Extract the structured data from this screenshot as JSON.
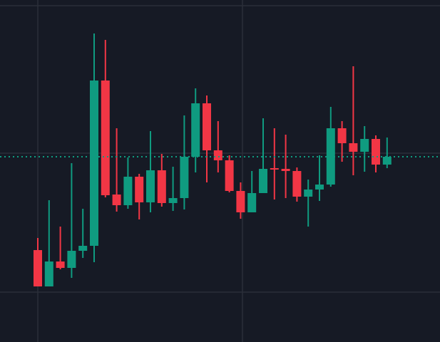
{
  "chart_data": {
    "type": "candlestick",
    "open": [
      12.9,
      7.8,
      11.3,
      10.4,
      12.8,
      13.5,
      36.7,
      20.7,
      19.2,
      23.2,
      19.6,
      24.1,
      19.5,
      20.2,
      26.0,
      33.5,
      26.9,
      25.5,
      21.2,
      18.2,
      20.9,
      24.4,
      24.3,
      24.0,
      20.4,
      21.4,
      22.1,
      30.0,
      27.9,
      26.7,
      28.5,
      24.9
    ],
    "high": [
      14.6,
      19.9,
      16.2,
      25.1,
      18.7,
      43.3,
      42.4,
      30.0,
      25.9,
      23.6,
      29.6,
      26.4,
      24.6,
      31.8,
      35.6,
      34.6,
      31.0,
      26.2,
      22.4,
      24.0,
      31.4,
      30.0,
      29.1,
      24.5,
      22.8,
      26.2,
      33.0,
      31.0,
      38.7,
      30.3,
      29.0,
      28.7
    ],
    "low": [
      7.8,
      7.8,
      10.2,
      9.0,
      11.8,
      11.2,
      20.3,
      18.3,
      18.7,
      17.2,
      18.2,
      19.0,
      18.4,
      18.6,
      23.8,
      22.4,
      23.8,
      21.0,
      17.3,
      18.2,
      20.9,
      20.0,
      20.2,
      19.7,
      16.2,
      19.8,
      21.8,
      25.3,
      23.4,
      23.9,
      23.8,
      24.4
    ],
    "close": [
      7.8,
      11.3,
      10.4,
      12.8,
      13.5,
      36.7,
      20.6,
      19.2,
      23.2,
      19.6,
      24.1,
      19.5,
      20.2,
      26.0,
      33.5,
      26.9,
      25.5,
      21.2,
      18.2,
      20.9,
      24.3,
      24.2,
      24.0,
      20.4,
      21.4,
      22.1,
      30.0,
      27.9,
      26.7,
      28.5,
      24.9,
      26.0
    ],
    "up_color": "#0f9b80",
    "down_color": "#f23645",
    "ylim": [
      0,
      48
    ],
    "grid": true
  }
}
